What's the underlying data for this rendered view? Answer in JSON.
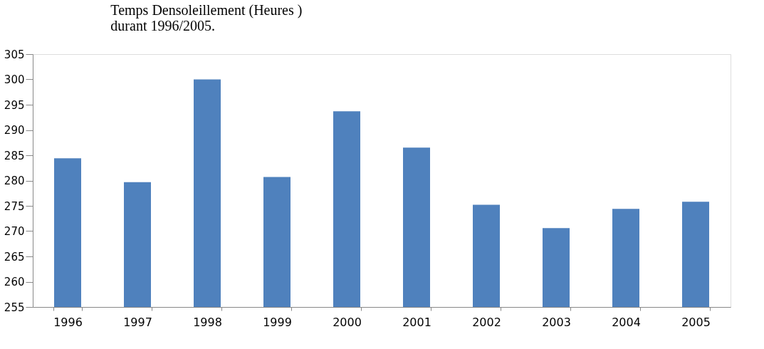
{
  "chart_data": {
    "type": "bar",
    "title": [
      "Temps Densoleillement (Heures )",
      "durant  1996/2005."
    ],
    "categories": [
      "1996",
      "1997",
      "1998",
      "1999",
      "2000",
      "2001",
      "2002",
      "2003",
      "2004",
      "2005"
    ],
    "values": [
      284.4,
      279.7,
      300,
      280.7,
      293.7,
      286.5,
      275.2,
      270.6,
      274.4,
      275.8
    ],
    "color": "#4f81bd",
    "ylim": [
      255,
      305
    ],
    "yticks": [
      255,
      260,
      265,
      270,
      275,
      280,
      285,
      290,
      295,
      300,
      305
    ],
    "grid": false
  }
}
